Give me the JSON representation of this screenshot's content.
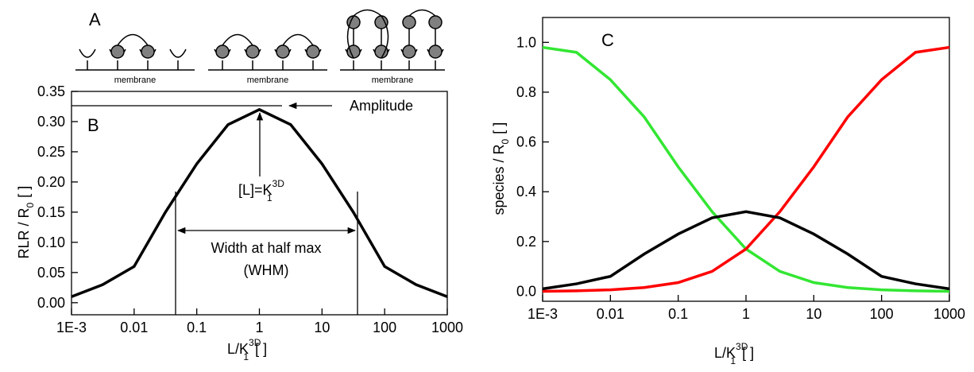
{
  "chart_data": [
    {
      "type": "line",
      "xscale": "log",
      "schematic": {
        "label": "A",
        "captions": [
          "membrane",
          "membrane",
          "membrane"
        ]
      },
      "panel_label": "B",
      "annotations": {
        "amplitude": "Amplitude",
        "position": {
          "text": "[L]=K",
          "sub": "1",
          "sup": "3D"
        },
        "width": "Width at half max",
        "width_abbr": "(WHM)"
      },
      "xlabel": {
        "text": "L/K",
        "sub": "1",
        "sup": "3D",
        "unit": "[ ]"
      },
      "ylabel": {
        "text": "RLR / R",
        "sub": "0",
        "unit": "[ ]"
      },
      "x": [
        0.001,
        0.00316,
        0.01,
        0.0316,
        0.1,
        0.316,
        1,
        3.16,
        10,
        31.6,
        100,
        316,
        1000
      ],
      "series": [
        {
          "color": "#000000",
          "values": [
            0.01,
            0.03,
            0.06,
            0.15,
            0.23,
            0.295,
            0.32,
            0.295,
            0.23,
            0.15,
            0.06,
            0.03,
            0.01
          ]
        }
      ],
      "xlim": [
        0.001,
        1000
      ],
      "xticks": [
        {
          "value": 0.001,
          "label": "1E-3"
        },
        0.01,
        0.1,
        1,
        10,
        100,
        1000
      ],
      "ylim": [
        -0.02,
        0.35
      ],
      "yticks": [
        {
          "value": 0,
          "label": "0.00"
        },
        0.05,
        {
          "value": 0.1,
          "label": "0.10"
        },
        0.15,
        {
          "value": 0.2,
          "label": "0.20"
        },
        0.25,
        {
          "value": 0.3,
          "label": "0.30"
        },
        0.35
      ]
    },
    {
      "type": "line",
      "xscale": "log",
      "panel_label": "C",
      "xlabel": {
        "text": "L/K",
        "sub": "1",
        "sup": "3D",
        "unit": "[ ]"
      },
      "ylabel": {
        "text": "species / R",
        "sub": "0",
        "unit": "[ ]"
      },
      "x": [
        0.001,
        0.00316,
        0.01,
        0.0316,
        0.1,
        0.316,
        1,
        3.16,
        10,
        31.6,
        100,
        316,
        1000
      ],
      "series": [
        {
          "color": "#33e633",
          "values": [
            0.98,
            0.96,
            0.85,
            0.7,
            0.5,
            0.32,
            0.17,
            0.08,
            0.035,
            0.015,
            0.006,
            0.002,
            0.0
          ]
        },
        {
          "color": "#ff0000",
          "values": [
            0.0,
            0.002,
            0.006,
            0.015,
            0.035,
            0.08,
            0.17,
            0.32,
            0.5,
            0.7,
            0.85,
            0.96,
            0.98
          ]
        },
        {
          "color": "#000000",
          "values": [
            0.01,
            0.03,
            0.06,
            0.15,
            0.23,
            0.295,
            0.32,
            0.295,
            0.23,
            0.15,
            0.06,
            0.03,
            0.01
          ]
        }
      ],
      "xlim": [
        0.001,
        1000
      ],
      "xticks": [
        {
          "value": 0.001,
          "label": "1E-3"
        },
        0.01,
        0.1,
        1,
        10,
        100,
        1000
      ],
      "ylim": [
        -0.04,
        1.1
      ],
      "yticks": [
        {
          "value": 0,
          "label": "0.0"
        },
        0.2,
        0.4,
        0.6,
        0.8,
        {
          "value": 1,
          "label": "1.0"
        }
      ]
    }
  ]
}
